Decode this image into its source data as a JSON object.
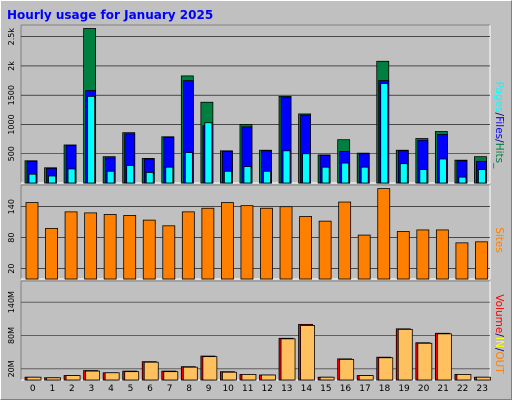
{
  "title": "Hourly usage for January 2025",
  "colors": {
    "hits": "#008040",
    "files": "#0000ff",
    "pages": "#00ffff",
    "sites": "#ff8000",
    "kb_in": "#ff0000",
    "kb_out": "#ffc060",
    "volume_label": "#ff0000",
    "in_label": "#ffff00",
    "out_label": "#ff8000",
    "slash": "#000080"
  },
  "legend": {
    "top": [
      "Pages",
      "/",
      "Files",
      "/",
      "Hits",
      "_"
    ],
    "mid": "Sites",
    "bottom": [
      "Volume",
      "/",
      "IN",
      "/",
      "OUT"
    ]
  },
  "chart_data": [
    {
      "type": "bar",
      "categories": [
        "0",
        "1",
        "2",
        "3",
        "4",
        "5",
        "6",
        "7",
        "8",
        "9",
        "10",
        "11",
        "12",
        "13",
        "14",
        "15",
        "16",
        "17",
        "18",
        "19",
        "20",
        "21",
        "22",
        "23"
      ],
      "yticks": [
        "2.5k",
        "2k",
        "1500",
        "1000",
        "500"
      ],
      "ylim": [
        0,
        2700
      ],
      "ytick_values": [
        2500,
        2000,
        1500,
        1000,
        500
      ],
      "series": [
        {
          "name": "Hits",
          "values": [
            380,
            260,
            650,
            2640,
            450,
            860,
            420,
            790,
            1830,
            1380,
            550,
            1000,
            560,
            1480,
            1180,
            480,
            740,
            510,
            2080,
            560,
            760,
            880,
            390,
            450
          ]
        },
        {
          "name": "Files",
          "values": [
            370,
            250,
            640,
            1580,
            430,
            840,
            410,
            780,
            1750,
            980,
            540,
            960,
            550,
            1460,
            1160,
            470,
            540,
            500,
            1750,
            550,
            730,
            830,
            380,
            370
          ]
        },
        {
          "name": "Pages",
          "values": [
            150,
            120,
            240,
            1480,
            200,
            300,
            180,
            270,
            520,
            1030,
            200,
            280,
            200,
            550,
            500,
            270,
            340,
            270,
            1700,
            330,
            230,
            410,
            100,
            230
          ]
        }
      ]
    },
    {
      "type": "bar",
      "categories": [
        "0",
        "1",
        "2",
        "3",
        "4",
        "5",
        "6",
        "7",
        "8",
        "9",
        "10",
        "11",
        "12",
        "13",
        "14",
        "15",
        "16",
        "17",
        "18",
        "19",
        "20",
        "21",
        "22",
        "23"
      ],
      "yticks": [
        "140",
        "80",
        "20"
      ],
      "ytick_values": [
        140,
        80,
        20
      ],
      "ylim": [
        0,
        182
      ],
      "series": [
        {
          "name": "Sites",
          "values": [
            148,
            98,
            130,
            128,
            125,
            123,
            114,
            103,
            130,
            137,
            148,
            142,
            137,
            140,
            121,
            112,
            149,
            85,
            175,
            92,
            95,
            95,
            70,
            72
          ]
        }
      ]
    },
    {
      "type": "bar",
      "categories": [
        "0",
        "1",
        "2",
        "3",
        "4",
        "5",
        "6",
        "7",
        "8",
        "9",
        "10",
        "11",
        "12",
        "13",
        "14",
        "15",
        "16",
        "17",
        "18",
        "19",
        "20",
        "21",
        "22",
        "23"
      ],
      "yticks": [
        "140M",
        "80M",
        "20M"
      ],
      "ytick_values": [
        140,
        80,
        20
      ],
      "ylim": [
        0,
        178
      ],
      "series": [
        {
          "name": "KB In",
          "values": [
            5,
            4,
            8,
            17,
            13,
            16,
            33,
            16,
            24,
            43,
            15,
            10,
            9,
            75,
            100,
            5,
            38,
            8,
            41,
            92,
            67,
            84,
            10,
            5
          ]
        },
        {
          "name": "KB Out",
          "values": [
            5,
            4,
            8,
            16,
            13,
            15,
            32,
            15,
            23,
            42,
            14,
            10,
            9,
            74,
            98,
            5,
            37,
            8,
            40,
            91,
            66,
            83,
            10,
            5
          ]
        }
      ]
    }
  ]
}
